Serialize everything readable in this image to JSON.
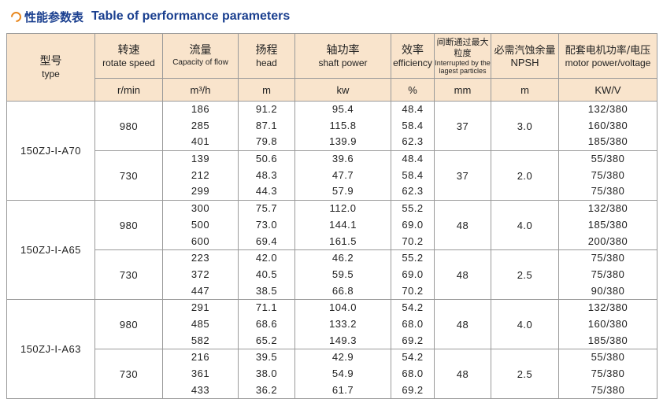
{
  "title": {
    "cn": "性能参数表",
    "en": "Table of performance parameters"
  },
  "headers": {
    "type": {
      "cn": "型号",
      "en": "type"
    },
    "speed": {
      "cn": "转速",
      "en": "rotate speed",
      "unit": "r/min"
    },
    "flow": {
      "cn": "流量",
      "en": "Capacity of flow",
      "unit": "m³/h"
    },
    "head": {
      "cn": "扬程",
      "en": "head",
      "unit": "m"
    },
    "power": {
      "cn": "轴功率",
      "en": "shaft power",
      "unit": "kw"
    },
    "eff": {
      "cn": "效率",
      "en": "efficiency",
      "unit": "%"
    },
    "particle": {
      "cn": "间断通过最大粒度",
      "en": "Interrupted by the lagest particles",
      "unit": "mm"
    },
    "npsh": {
      "cn": "必需汽蚀余量",
      "en": "NPSH",
      "unit": "m"
    },
    "motor": {
      "cn": "配套电机功率/电压",
      "en": "motor power/voltage",
      "unit": "KW/V"
    }
  },
  "rows": [
    {
      "model": "150ZJ-I-A70",
      "groups": [
        {
          "speed": "980",
          "flow": [
            "186",
            "285",
            "401"
          ],
          "head": [
            "91.2",
            "87.1",
            "79.8"
          ],
          "power": [
            "95.4",
            "115.8",
            "139.9"
          ],
          "eff": [
            "48.4",
            "58.4",
            "62.3"
          ],
          "particle": "37",
          "npsh": "3.0",
          "motor": [
            "132/380",
            "160/380",
            "185/380"
          ]
        },
        {
          "speed": "730",
          "flow": [
            "139",
            "212",
            "299"
          ],
          "head": [
            "50.6",
            "48.3",
            "44.3"
          ],
          "power": [
            "39.6",
            "47.7",
            "57.9"
          ],
          "eff": [
            "48.4",
            "58.4",
            "62.3"
          ],
          "particle": "37",
          "npsh": "2.0",
          "motor": [
            "55/380",
            "75/380",
            "75/380"
          ]
        }
      ]
    },
    {
      "model": "150ZJ-I-A65",
      "groups": [
        {
          "speed": "980",
          "flow": [
            "300",
            "500",
            "600"
          ],
          "head": [
            "75.7",
            "73.0",
            "69.4"
          ],
          "power": [
            "112.0",
            "144.1",
            "161.5"
          ],
          "eff": [
            "55.2",
            "69.0",
            "70.2"
          ],
          "particle": "48",
          "npsh": "4.0",
          "motor": [
            "132/380",
            "185/380",
            "200/380"
          ]
        },
        {
          "speed": "730",
          "flow": [
            "223",
            "372",
            "447"
          ],
          "head": [
            "42.0",
            "40.5",
            "38.5"
          ],
          "power": [
            "46.2",
            "59.5",
            "66.8"
          ],
          "eff": [
            "55.2",
            "69.0",
            "70.2"
          ],
          "particle": "48",
          "npsh": "2.5",
          "motor": [
            "75/380",
            "75/380",
            "90/380"
          ]
        }
      ]
    },
    {
      "model": "150ZJ-I-A63",
      "groups": [
        {
          "speed": "980",
          "flow": [
            "291",
            "485",
            "582"
          ],
          "head": [
            "71.1",
            "68.6",
            "65.2"
          ],
          "power": [
            "104.0",
            "133.2",
            "149.3"
          ],
          "eff": [
            "54.2",
            "68.0",
            "69.2"
          ],
          "particle": "48",
          "npsh": "4.0",
          "motor": [
            "132/380",
            "160/380",
            "185/380"
          ]
        },
        {
          "speed": "730",
          "flow": [
            "216",
            "361",
            "433"
          ],
          "head": [
            "39.5",
            "38.0",
            "36.2"
          ],
          "power": [
            "42.9",
            "54.9",
            "61.7"
          ],
          "eff": [
            "54.2",
            "68.0",
            "69.2"
          ],
          "particle": "48",
          "npsh": "2.5",
          "motor": [
            "55/380",
            "75/380",
            "75/380"
          ]
        }
      ]
    }
  ]
}
